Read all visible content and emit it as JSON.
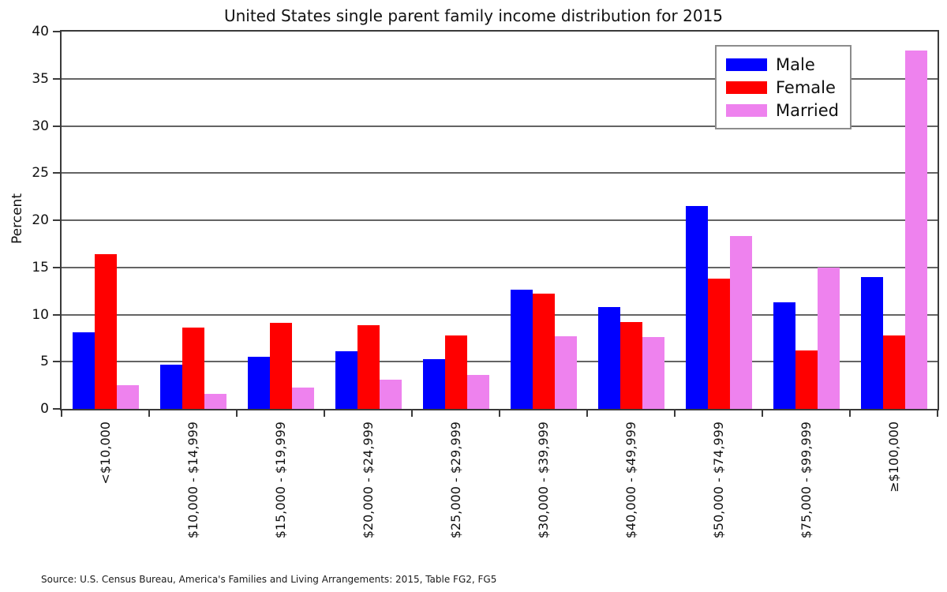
{
  "figure": {
    "title": "United States single parent family income distribution for 2015",
    "source": "Source: U.S. Census Bureau, America's Families and Living Arrangements: 2015, Table FG2, FG5"
  },
  "chart_data": {
    "type": "bar",
    "title": "United States single parent family income distribution for 2015",
    "xlabel": "",
    "ylabel": "Percent",
    "ylim": [
      0,
      40
    ],
    "yticks": [
      0,
      5,
      10,
      15,
      20,
      25,
      30,
      35,
      40
    ],
    "grid": "horizontal",
    "legend_position": "top-right",
    "categories": [
      "<$10,000",
      "$10,000 - $14,999",
      "$15,000 - $19,999",
      "$20,000 - $24,999",
      "$25,000 - $29,999",
      "$30,000 - $39,999",
      "$40,000 - $49,999",
      "$50,000 - $74,999",
      "$75,000 - $99,999",
      "≥$100,000"
    ],
    "series": [
      {
        "name": "Male",
        "color": "#0000FF",
        "values": [
          8.1,
          4.7,
          5.5,
          6.1,
          5.3,
          12.6,
          10.8,
          21.5,
          11.3,
          14.0
        ]
      },
      {
        "name": "Female",
        "color": "#FF0000",
        "values": [
          16.4,
          8.6,
          9.1,
          8.9,
          7.8,
          12.2,
          9.2,
          13.8,
          6.2,
          7.8
        ]
      },
      {
        "name": "Married",
        "color": "#EE82EE",
        "values": [
          2.5,
          1.6,
          2.3,
          3.1,
          3.6,
          7.7,
          7.6,
          18.3,
          15.0,
          38.0
        ]
      }
    ]
  },
  "colors": {
    "grid": "#646464",
    "frame": "#3a3a3a",
    "legend_border": "#8c8c8c"
  }
}
